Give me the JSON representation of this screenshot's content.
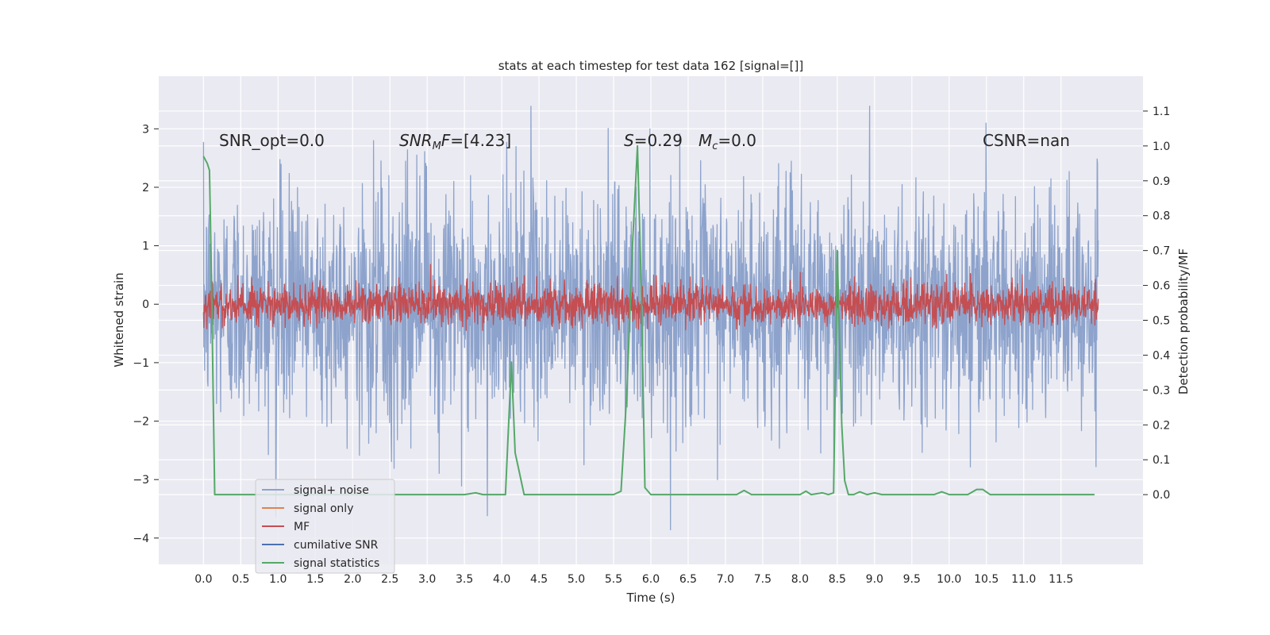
{
  "chart_data": {
    "type": "line",
    "title": "stats at each timestep for test data 162 [signal=[]]",
    "xlabel": "Time (s)",
    "ylabel": "Whitened strain",
    "ylabel_right": "Detection probability/MF",
    "xlim": [
      -0.6,
      12.6
    ],
    "ylim": [
      -4.45,
      3.9
    ],
    "ylim_right": [
      -0.2,
      1.2
    ],
    "x_ticks": [
      "0.0",
      "0.5",
      "1.0",
      "1.5",
      "2.0",
      "2.5",
      "3.0",
      "3.5",
      "4.0",
      "4.5",
      "5.0",
      "5.5",
      "6.0",
      "6.5",
      "7.0",
      "7.5",
      "8.0",
      "8.5",
      "9.0",
      "9.5",
      "10.0",
      "10.5",
      "11.0",
      "11.5"
    ],
    "y_ticks": [
      "3",
      "2",
      "1",
      "0",
      "−1",
      "−2",
      "−3",
      "−4"
    ],
    "y_ticks_right": [
      "1.1",
      "1.0",
      "0.9",
      "0.8",
      "0.7",
      "0.6",
      "0.5",
      "0.4",
      "0.3",
      "0.2",
      "0.1",
      "0.0"
    ],
    "grid": true,
    "legend_position": "lower-left",
    "annotations": [
      {
        "text": "SNR_opt=0.0"
      },
      {
        "text": "SNR_MF=[4.23]"
      },
      {
        "text": "S=0.29"
      },
      {
        "text": "M_c=0.0"
      },
      {
        "text": "CSNR=nan"
      }
    ],
    "series": [
      {
        "name": "signal+ noise",
        "axis": "left",
        "color": "#8da3cc",
        "kind": "noise",
        "x_range": [
          0.0,
          12.0
        ],
        "amplitude_std": 1.0,
        "typical_range": [
          -3.2,
          3.2
        ]
      },
      {
        "name": "signal only",
        "axis": "left",
        "color": "#dd8452",
        "kind": "empty"
      },
      {
        "name": "MF",
        "axis": "left",
        "color": "#c44e52",
        "kind": "noise",
        "x_range": [
          0.0,
          12.0
        ],
        "amplitude_std": 0.18,
        "typical_range": [
          -0.45,
          0.9
        ]
      },
      {
        "name": "cumilative SNR",
        "axis": "left",
        "color": "#4c72b0",
        "kind": "empty"
      },
      {
        "name": "signal statistics",
        "axis": "right",
        "color": "#55a868",
        "kind": "line",
        "x": [
          0.0,
          0.05,
          0.08,
          0.1,
          0.15,
          0.3,
          1.0,
          2.0,
          3.0,
          3.5,
          3.65,
          3.75,
          3.9,
          4.05,
          4.13,
          4.18,
          4.22,
          4.3,
          4.5,
          5.0,
          5.5,
          5.6,
          5.68,
          5.75,
          5.82,
          5.87,
          5.92,
          6.0,
          6.3,
          7.0,
          7.15,
          7.25,
          7.35,
          7.6,
          8.0,
          8.08,
          8.15,
          8.3,
          8.38,
          8.45,
          8.5,
          8.56,
          8.6,
          8.65,
          8.72,
          8.8,
          8.9,
          9.0,
          9.1,
          9.5,
          9.8,
          9.9,
          10.0,
          10.25,
          10.37,
          10.45,
          10.55,
          11.0,
          11.5,
          11.95
        ],
        "y": [
          0.97,
          0.95,
          0.93,
          0.7,
          0.0,
          0.0,
          0.0,
          0.0,
          0.0,
          0.0,
          0.005,
          0.0,
          0.0,
          0.0,
          0.38,
          0.12,
          0.08,
          0.0,
          0.0,
          0.0,
          0.0,
          0.01,
          0.3,
          0.7,
          1.0,
          0.6,
          0.02,
          0.0,
          0.0,
          0.0,
          0.0,
          0.012,
          0.0,
          0.0,
          0.0,
          0.01,
          0.0,
          0.005,
          0.0,
          0.005,
          0.7,
          0.2,
          0.04,
          0.0,
          0.0,
          0.008,
          0.0,
          0.005,
          0.0,
          0.0,
          0.0,
          0.008,
          0.0,
          0.0,
          0.015,
          0.015,
          0.0,
          0.0,
          0.0,
          0.0
        ]
      }
    ]
  }
}
